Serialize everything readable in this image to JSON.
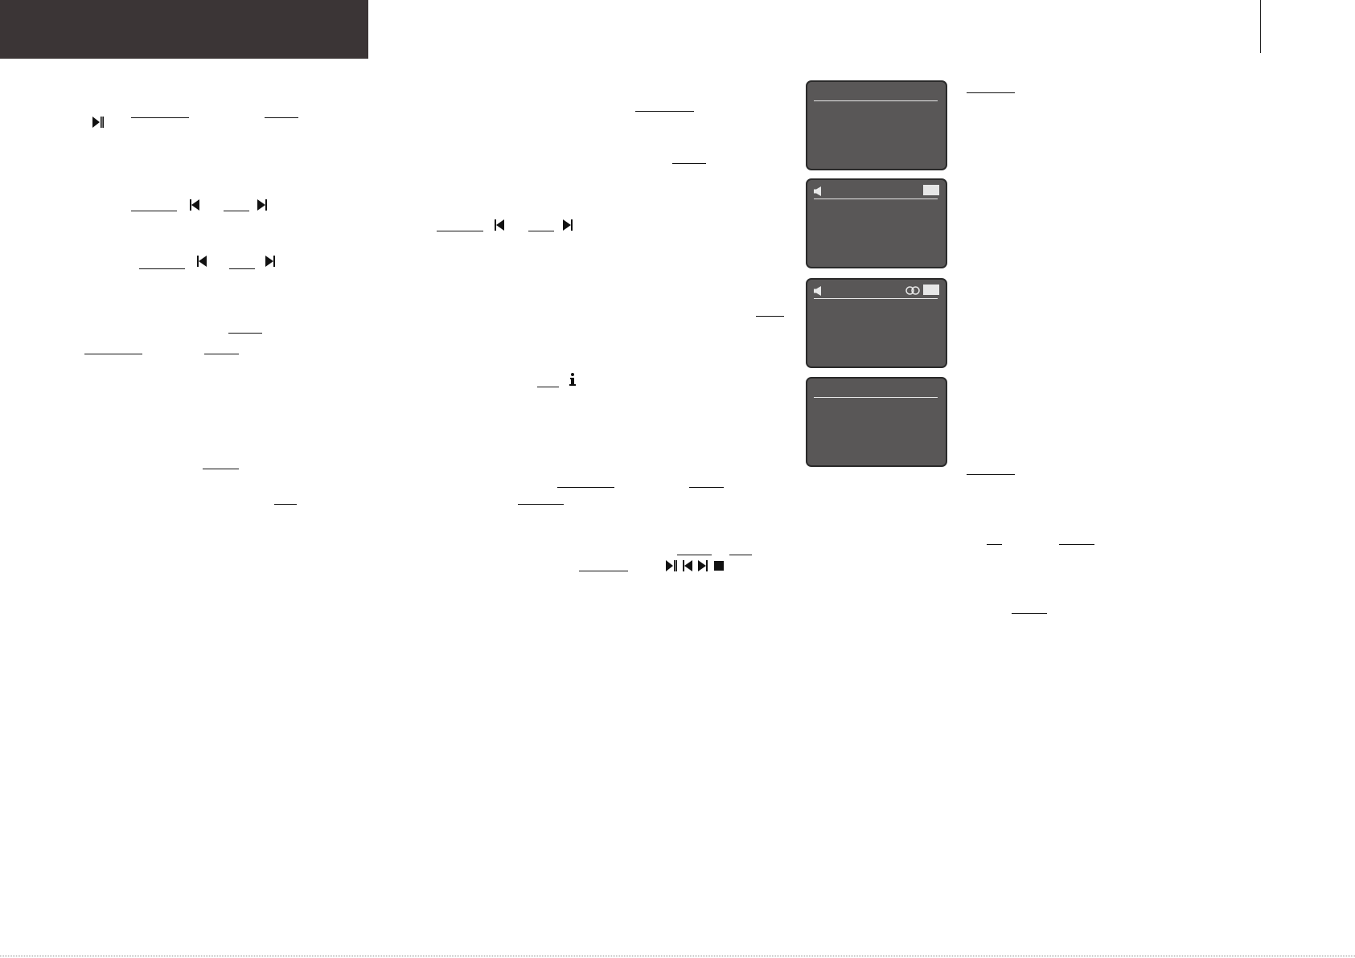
{
  "colors": {
    "header": "#3b3536",
    "screen": "#595757",
    "screen_border": "#2a2a2a",
    "screen_rule": "#e8e8e8",
    "ink": "#111111"
  },
  "icons": {
    "play_pause": "play-pause-icon",
    "previous": "skip-previous-icon",
    "next": "skip-next-icon",
    "info": "info-icon",
    "stop": "stop-icon",
    "speaker": "speaker-icon",
    "stereo": "stereo-icon"
  },
  "screens": [
    {
      "has_speaker": false,
      "has_badge": false,
      "has_stereo": false
    },
    {
      "has_speaker": true,
      "has_badge": true,
      "has_stereo": false
    },
    {
      "has_speaker": true,
      "has_badge": true,
      "has_stereo": true
    },
    {
      "has_speaker": false,
      "has_badge": false,
      "has_stereo": false
    }
  ]
}
